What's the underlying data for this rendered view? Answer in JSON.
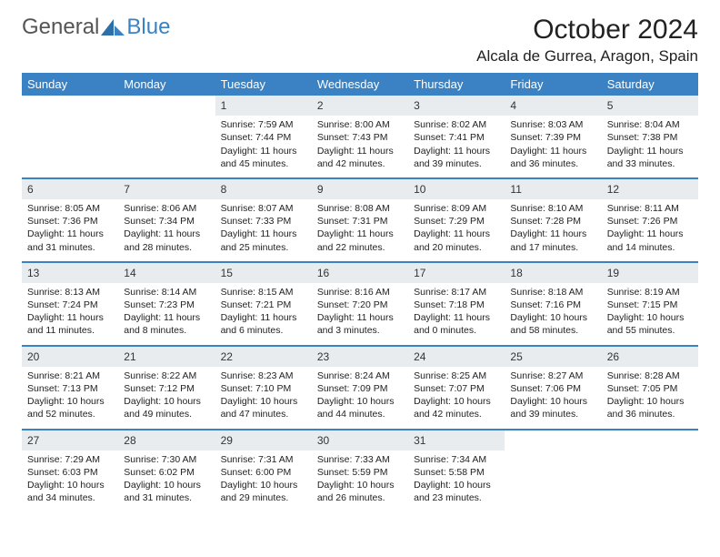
{
  "logo": {
    "text1": "General",
    "text2": "Blue"
  },
  "title": "October 2024",
  "location": "Alcala de Gurrea, Aragon, Spain",
  "weekday_headers": [
    "Sunday",
    "Monday",
    "Tuesday",
    "Wednesday",
    "Thursday",
    "Friday",
    "Saturday"
  ],
  "colors": {
    "header_bg": "#3b82c4",
    "header_text": "#ffffff",
    "daynum_bg": "#e9ecef",
    "row_divider": "#3b82c4",
    "body_text": "#1a1a1a",
    "logo_gray": "#555555",
    "logo_blue": "#3b82c4",
    "background": "#ffffff"
  },
  "typography": {
    "title_fontsize": 30,
    "location_fontsize": 17,
    "header_fontsize": 13,
    "daynum_fontsize": 12,
    "body_fontsize": 10.5
  },
  "layout": {
    "columns": 7,
    "rows": 5
  },
  "labels": {
    "sunrise": "Sunrise:",
    "sunset": "Sunset:",
    "daylight": "Daylight:"
  },
  "weeks": [
    [
      {
        "empty": true
      },
      {
        "empty": true
      },
      {
        "day": "1",
        "sunrise": "7:59 AM",
        "sunset": "7:44 PM",
        "daylight": "11 hours and 45 minutes."
      },
      {
        "day": "2",
        "sunrise": "8:00 AM",
        "sunset": "7:43 PM",
        "daylight": "11 hours and 42 minutes."
      },
      {
        "day": "3",
        "sunrise": "8:02 AM",
        "sunset": "7:41 PM",
        "daylight": "11 hours and 39 minutes."
      },
      {
        "day": "4",
        "sunrise": "8:03 AM",
        "sunset": "7:39 PM",
        "daylight": "11 hours and 36 minutes."
      },
      {
        "day": "5",
        "sunrise": "8:04 AM",
        "sunset": "7:38 PM",
        "daylight": "11 hours and 33 minutes."
      }
    ],
    [
      {
        "day": "6",
        "sunrise": "8:05 AM",
        "sunset": "7:36 PM",
        "daylight": "11 hours and 31 minutes."
      },
      {
        "day": "7",
        "sunrise": "8:06 AM",
        "sunset": "7:34 PM",
        "daylight": "11 hours and 28 minutes."
      },
      {
        "day": "8",
        "sunrise": "8:07 AM",
        "sunset": "7:33 PM",
        "daylight": "11 hours and 25 minutes."
      },
      {
        "day": "9",
        "sunrise": "8:08 AM",
        "sunset": "7:31 PM",
        "daylight": "11 hours and 22 minutes."
      },
      {
        "day": "10",
        "sunrise": "8:09 AM",
        "sunset": "7:29 PM",
        "daylight": "11 hours and 20 minutes."
      },
      {
        "day": "11",
        "sunrise": "8:10 AM",
        "sunset": "7:28 PM",
        "daylight": "11 hours and 17 minutes."
      },
      {
        "day": "12",
        "sunrise": "8:11 AM",
        "sunset": "7:26 PM",
        "daylight": "11 hours and 14 minutes."
      }
    ],
    [
      {
        "day": "13",
        "sunrise": "8:13 AM",
        "sunset": "7:24 PM",
        "daylight": "11 hours and 11 minutes."
      },
      {
        "day": "14",
        "sunrise": "8:14 AM",
        "sunset": "7:23 PM",
        "daylight": "11 hours and 8 minutes."
      },
      {
        "day": "15",
        "sunrise": "8:15 AM",
        "sunset": "7:21 PM",
        "daylight": "11 hours and 6 minutes."
      },
      {
        "day": "16",
        "sunrise": "8:16 AM",
        "sunset": "7:20 PM",
        "daylight": "11 hours and 3 minutes."
      },
      {
        "day": "17",
        "sunrise": "8:17 AM",
        "sunset": "7:18 PM",
        "daylight": "11 hours and 0 minutes."
      },
      {
        "day": "18",
        "sunrise": "8:18 AM",
        "sunset": "7:16 PM",
        "daylight": "10 hours and 58 minutes."
      },
      {
        "day": "19",
        "sunrise": "8:19 AM",
        "sunset": "7:15 PM",
        "daylight": "10 hours and 55 minutes."
      }
    ],
    [
      {
        "day": "20",
        "sunrise": "8:21 AM",
        "sunset": "7:13 PM",
        "daylight": "10 hours and 52 minutes."
      },
      {
        "day": "21",
        "sunrise": "8:22 AM",
        "sunset": "7:12 PM",
        "daylight": "10 hours and 49 minutes."
      },
      {
        "day": "22",
        "sunrise": "8:23 AM",
        "sunset": "7:10 PM",
        "daylight": "10 hours and 47 minutes."
      },
      {
        "day": "23",
        "sunrise": "8:24 AM",
        "sunset": "7:09 PM",
        "daylight": "10 hours and 44 minutes."
      },
      {
        "day": "24",
        "sunrise": "8:25 AM",
        "sunset": "7:07 PM",
        "daylight": "10 hours and 42 minutes."
      },
      {
        "day": "25",
        "sunrise": "8:27 AM",
        "sunset": "7:06 PM",
        "daylight": "10 hours and 39 minutes."
      },
      {
        "day": "26",
        "sunrise": "8:28 AM",
        "sunset": "7:05 PM",
        "daylight": "10 hours and 36 minutes."
      }
    ],
    [
      {
        "day": "27",
        "sunrise": "7:29 AM",
        "sunset": "6:03 PM",
        "daylight": "10 hours and 34 minutes."
      },
      {
        "day": "28",
        "sunrise": "7:30 AM",
        "sunset": "6:02 PM",
        "daylight": "10 hours and 31 minutes."
      },
      {
        "day": "29",
        "sunrise": "7:31 AM",
        "sunset": "6:00 PM",
        "daylight": "10 hours and 29 minutes."
      },
      {
        "day": "30",
        "sunrise": "7:33 AM",
        "sunset": "5:59 PM",
        "daylight": "10 hours and 26 minutes."
      },
      {
        "day": "31",
        "sunrise": "7:34 AM",
        "sunset": "5:58 PM",
        "daylight": "10 hours and 23 minutes."
      },
      {
        "empty": true
      },
      {
        "empty": true
      }
    ]
  ]
}
